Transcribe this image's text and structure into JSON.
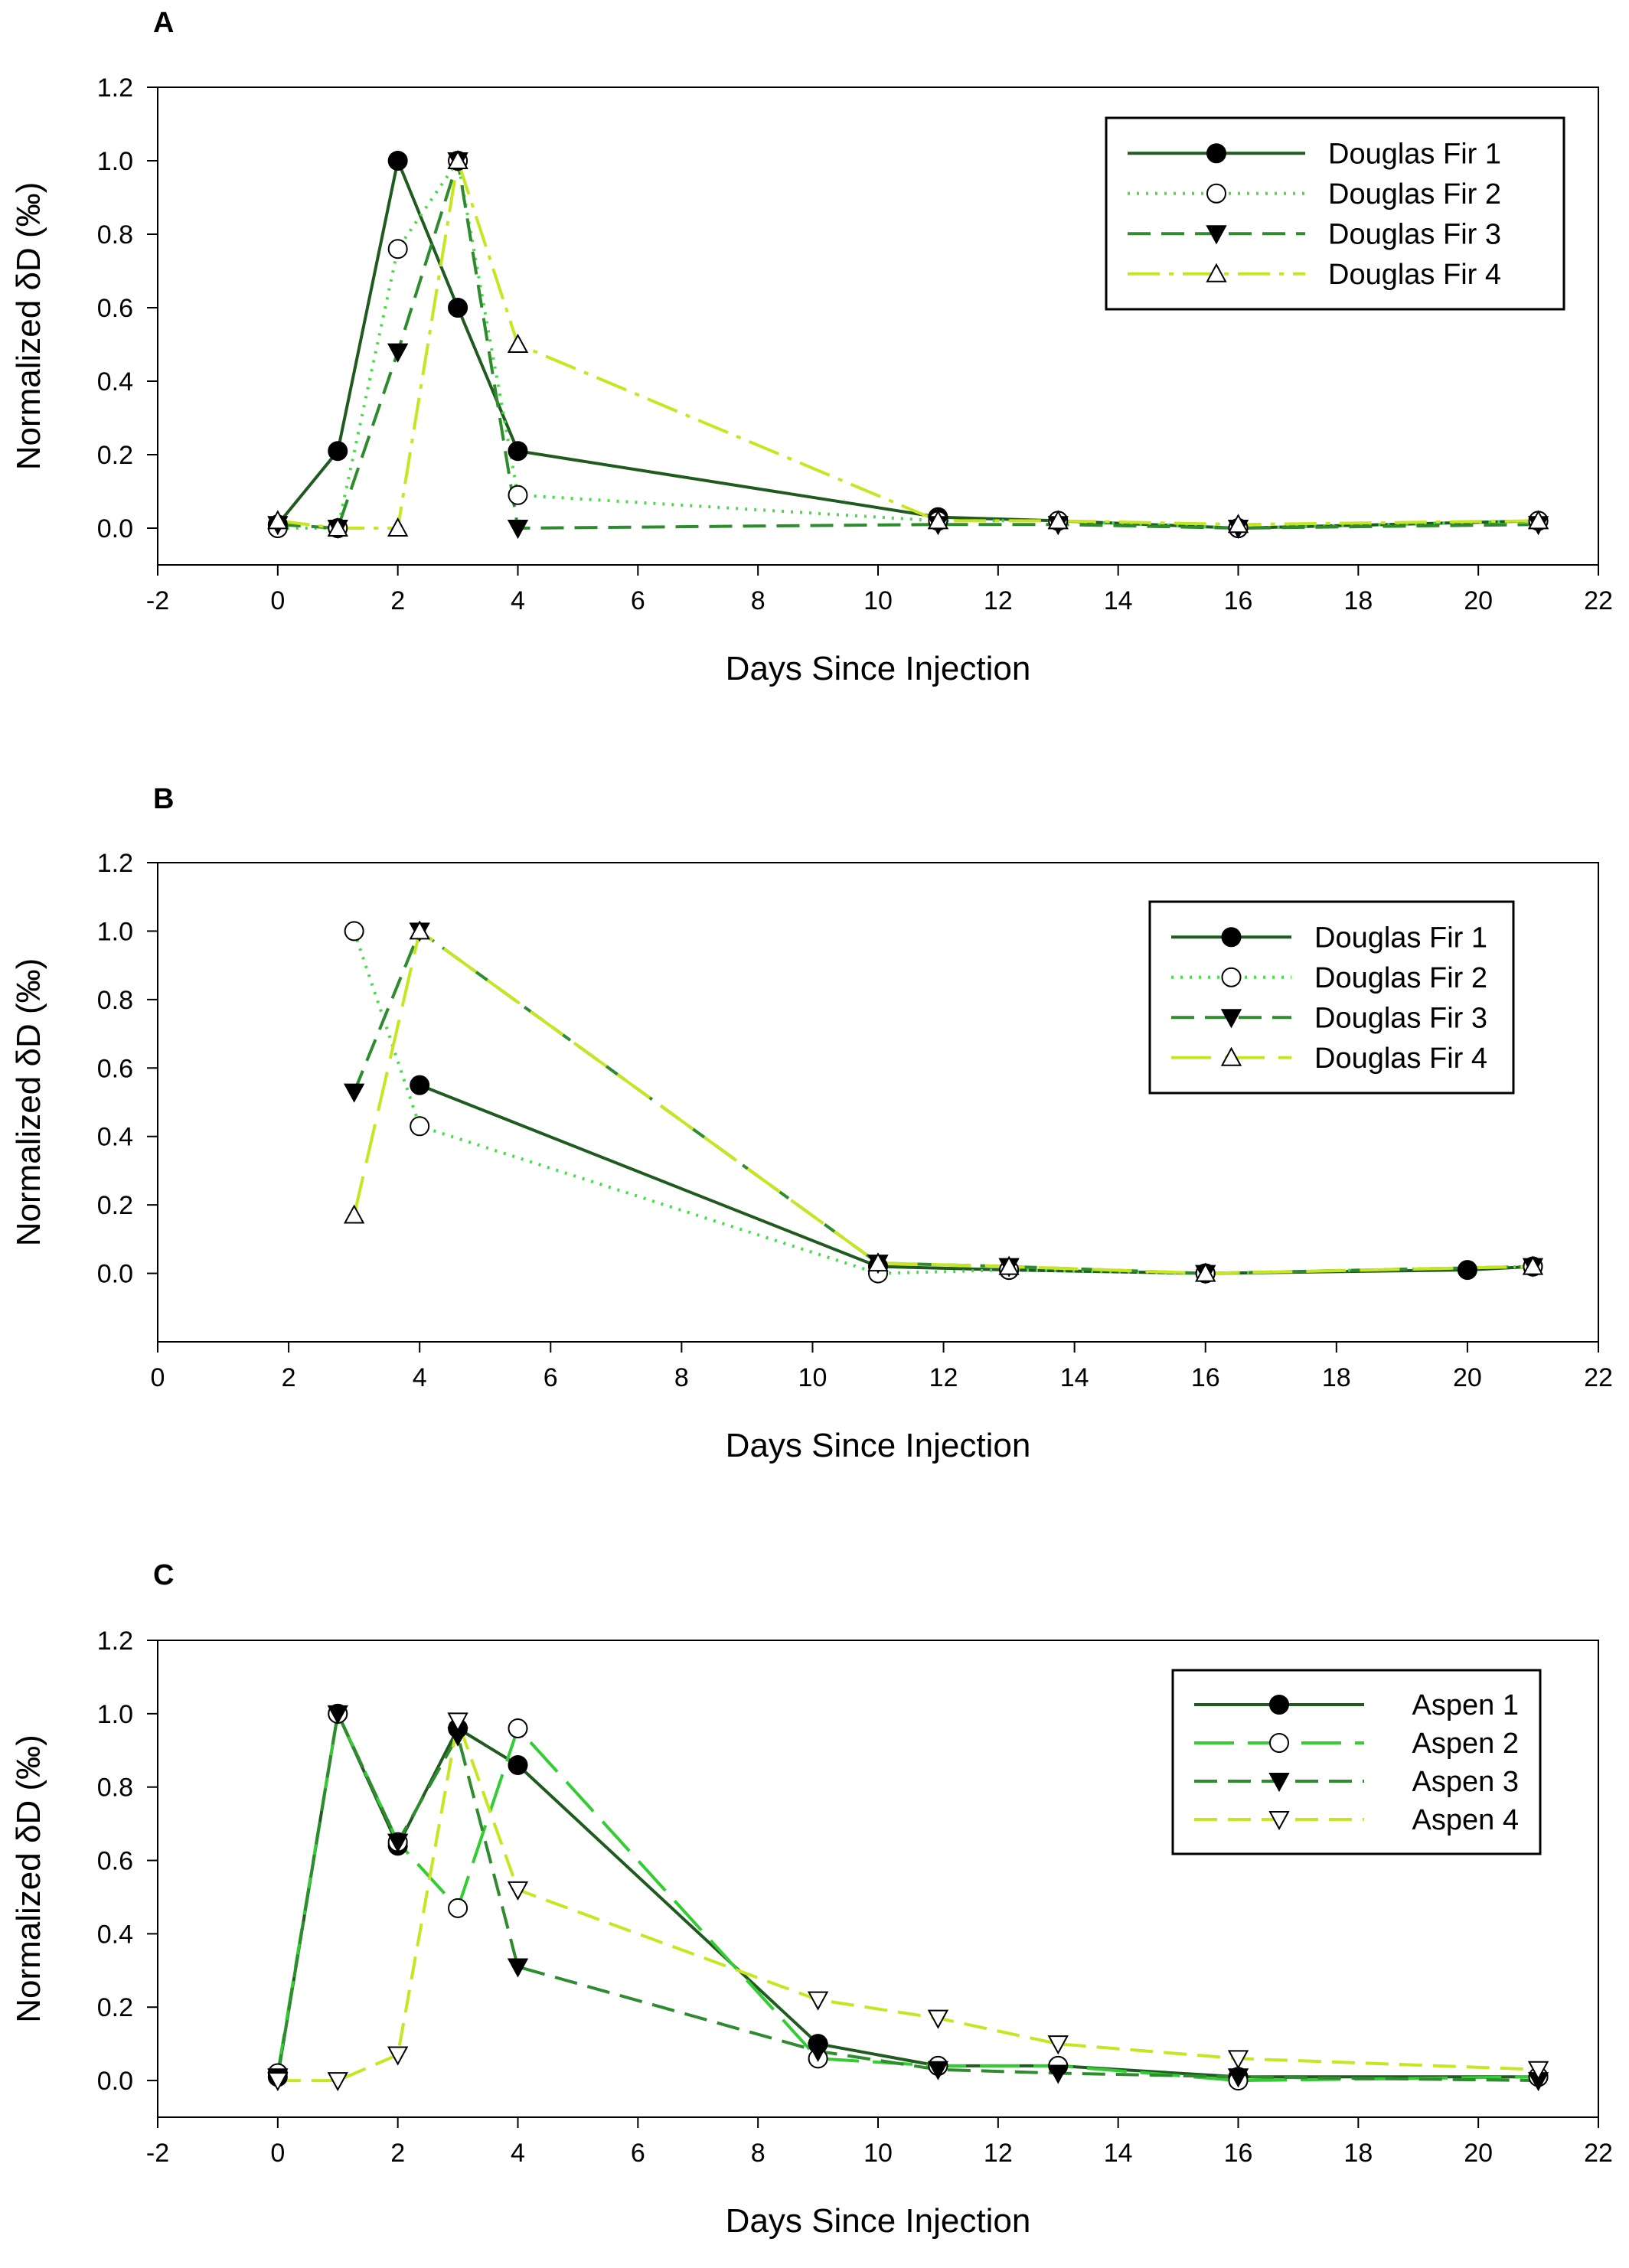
{
  "figure": {
    "panel_count": 3
  },
  "chart_data": [
    {
      "type": "line",
      "panel_label": "A",
      "xlabel": "Days Since Injection",
      "ylabel": "Normalized δD (‰)",
      "xlim": [
        -2,
        22
      ],
      "ylim": [
        -0.1,
        1.2
      ],
      "xticks": [
        -2,
        0,
        2,
        4,
        6,
        8,
        10,
        12,
        14,
        16,
        18,
        20,
        22
      ],
      "xtick_labels": [
        "-2",
        "0",
        "2",
        "4",
        "6",
        "8",
        "10",
        "12",
        "14",
        "16",
        "18",
        "20",
        "22"
      ],
      "yticks": [
        0,
        0.2,
        0.4,
        0.6,
        0.8,
        1.0,
        1.2
      ],
      "ytick_labels": [
        "0.0",
        "0.2",
        "0.4",
        "0.6",
        "0.8",
        "1.0",
        "1.2"
      ],
      "legend_position": "top-right",
      "series": [
        {
          "name": "Douglas Fir 1",
          "color": "#1f5a1f",
          "dash": "solid",
          "marker": "circle-filled",
          "x": [
            0,
            1,
            2,
            3,
            4,
            11,
            13,
            16,
            21
          ],
          "y": [
            0.01,
            0.21,
            1.0,
            0.6,
            0.21,
            0.03,
            0.02,
            0.0,
            0.02
          ]
        },
        {
          "name": "Douglas Fir 2",
          "color": "#44dd44",
          "dash": "dotted",
          "marker": "circle-open",
          "x": [
            0,
            1,
            2,
            3,
            4,
            11,
            13,
            16,
            21
          ],
          "y": [
            0.0,
            0.0,
            0.76,
            1.0,
            0.09,
            0.02,
            0.02,
            0.0,
            0.02
          ]
        },
        {
          "name": "Douglas Fir 3",
          "color": "#2e8b2e",
          "dash": "dashed",
          "marker": "triangle-down-filled",
          "x": [
            0,
            1,
            2,
            3,
            4,
            11,
            13,
            16,
            21
          ],
          "y": [
            0.01,
            0.0,
            0.48,
            1.0,
            0.0,
            0.01,
            0.01,
            0.0,
            0.01
          ]
        },
        {
          "name": "Douglas Fir 4",
          "color": "#c8e620",
          "dash": "dashdot",
          "marker": "triangle-up-open",
          "x": [
            0,
            1,
            2,
            3,
            4,
            11,
            13,
            16,
            21
          ],
          "y": [
            0.02,
            0.0,
            0.0,
            1.0,
            0.5,
            0.02,
            0.02,
            0.01,
            0.02
          ]
        }
      ]
    },
    {
      "type": "line",
      "panel_label": "B",
      "xlabel": "Days Since Injection",
      "ylabel": "Normalized δD (‰)",
      "xlim": [
        0,
        22
      ],
      "ylim": [
        -0.2,
        1.2
      ],
      "xticks": [
        0,
        2,
        4,
        6,
        8,
        10,
        12,
        14,
        16,
        18,
        20,
        22
      ],
      "xtick_labels": [
        "0",
        "2",
        "4",
        "6",
        "8",
        "10",
        "12",
        "14",
        "16",
        "18",
        "20",
        "22"
      ],
      "yticks": [
        0,
        0.2,
        0.4,
        0.6,
        0.8,
        1.0,
        1.2
      ],
      "ytick_labels": [
        "0.0",
        "0.2",
        "0.4",
        "0.6",
        "0.8",
        "1.0",
        "1.2"
      ],
      "legend_position": "top-right",
      "series": [
        {
          "name": "Douglas Fir 1",
          "color": "#1f5a1f",
          "dash": "solid",
          "marker": "circle-filled",
          "x": [
            4,
            11,
            13,
            16,
            20,
            21
          ],
          "y": [
            0.55,
            0.02,
            0.01,
            0.0,
            0.01,
            0.02
          ]
        },
        {
          "name": "Douglas Fir 2",
          "color": "#44dd44",
          "dash": "dotted",
          "marker": "circle-open",
          "x": [
            3,
            4,
            11,
            13,
            16,
            21
          ],
          "y": [
            1.0,
            0.43,
            0.0,
            0.01,
            0.0,
            0.02
          ]
        },
        {
          "name": "Douglas Fir 3",
          "color": "#2e8b2e",
          "dash": "dashed",
          "marker": "triangle-down-filled",
          "x": [
            3,
            4,
            11,
            13,
            16,
            21
          ],
          "y": [
            0.53,
            1.0,
            0.03,
            0.02,
            0.0,
            0.02
          ]
        },
        {
          "name": "Douglas Fir 4",
          "color": "#c8e620",
          "dash": "longdash",
          "marker": "triangle-up-open",
          "x": [
            3,
            4,
            11,
            13,
            16,
            21
          ],
          "y": [
            0.17,
            1.0,
            0.03,
            0.02,
            0.0,
            0.02
          ]
        }
      ]
    },
    {
      "type": "line",
      "panel_label": "C",
      "xlabel": "Days Since Injection",
      "ylabel": "Normalized δD (‰)",
      "xlim": [
        -2,
        22
      ],
      "ylim": [
        -0.1,
        1.2
      ],
      "xticks": [
        -2,
        0,
        2,
        4,
        6,
        8,
        10,
        12,
        14,
        16,
        18,
        20,
        22
      ],
      "xtick_labels": [
        "-2",
        "0",
        "2",
        "4",
        "6",
        "8",
        "10",
        "12",
        "14",
        "16",
        "18",
        "20",
        "22"
      ],
      "yticks": [
        0,
        0.2,
        0.4,
        0.6,
        0.8,
        1.0,
        1.2
      ],
      "ytick_labels": [
        "0.0",
        "0.2",
        "0.4",
        "0.6",
        "0.8",
        "1.0",
        "1.2"
      ],
      "legend_position": "top-right",
      "series": [
        {
          "name": "Aspen 1",
          "color": "#1f5a1f",
          "dash": "solid",
          "marker": "circle-filled",
          "x": [
            0,
            1,
            2,
            3,
            4,
            9,
            11,
            13,
            16,
            21
          ],
          "y": [
            0.01,
            1.0,
            0.64,
            0.96,
            0.86,
            0.1,
            0.04,
            0.04,
            0.01,
            0.01
          ]
        },
        {
          "name": "Aspen 2",
          "color": "#33cc33",
          "dash": "longdash",
          "marker": "circle-open",
          "x": [
            0,
            1,
            2,
            3,
            4,
            9,
            11,
            13,
            16,
            21
          ],
          "y": [
            0.02,
            1.0,
            0.65,
            0.47,
            0.96,
            0.06,
            0.04,
            0.04,
            0.0,
            0.01
          ]
        },
        {
          "name": "Aspen 3",
          "color": "#2e8b2e",
          "dash": "dashed",
          "marker": "triangle-down-filled",
          "x": [
            0,
            1,
            2,
            3,
            4,
            9,
            11,
            13,
            16,
            21
          ],
          "y": [
            0.01,
            1.0,
            0.65,
            0.94,
            0.31,
            0.08,
            0.03,
            0.02,
            0.01,
            0.0
          ]
        },
        {
          "name": "Aspen 4",
          "color": "#c8e620",
          "dash": "dashed",
          "marker": "triangle-down-open",
          "x": [
            0,
            1,
            2,
            3,
            4,
            9,
            11,
            13,
            16,
            21
          ],
          "y": [
            0.0,
            0.0,
            0.07,
            0.98,
            0.52,
            0.22,
            0.17,
            0.1,
            0.06,
            0.03
          ]
        }
      ]
    }
  ]
}
